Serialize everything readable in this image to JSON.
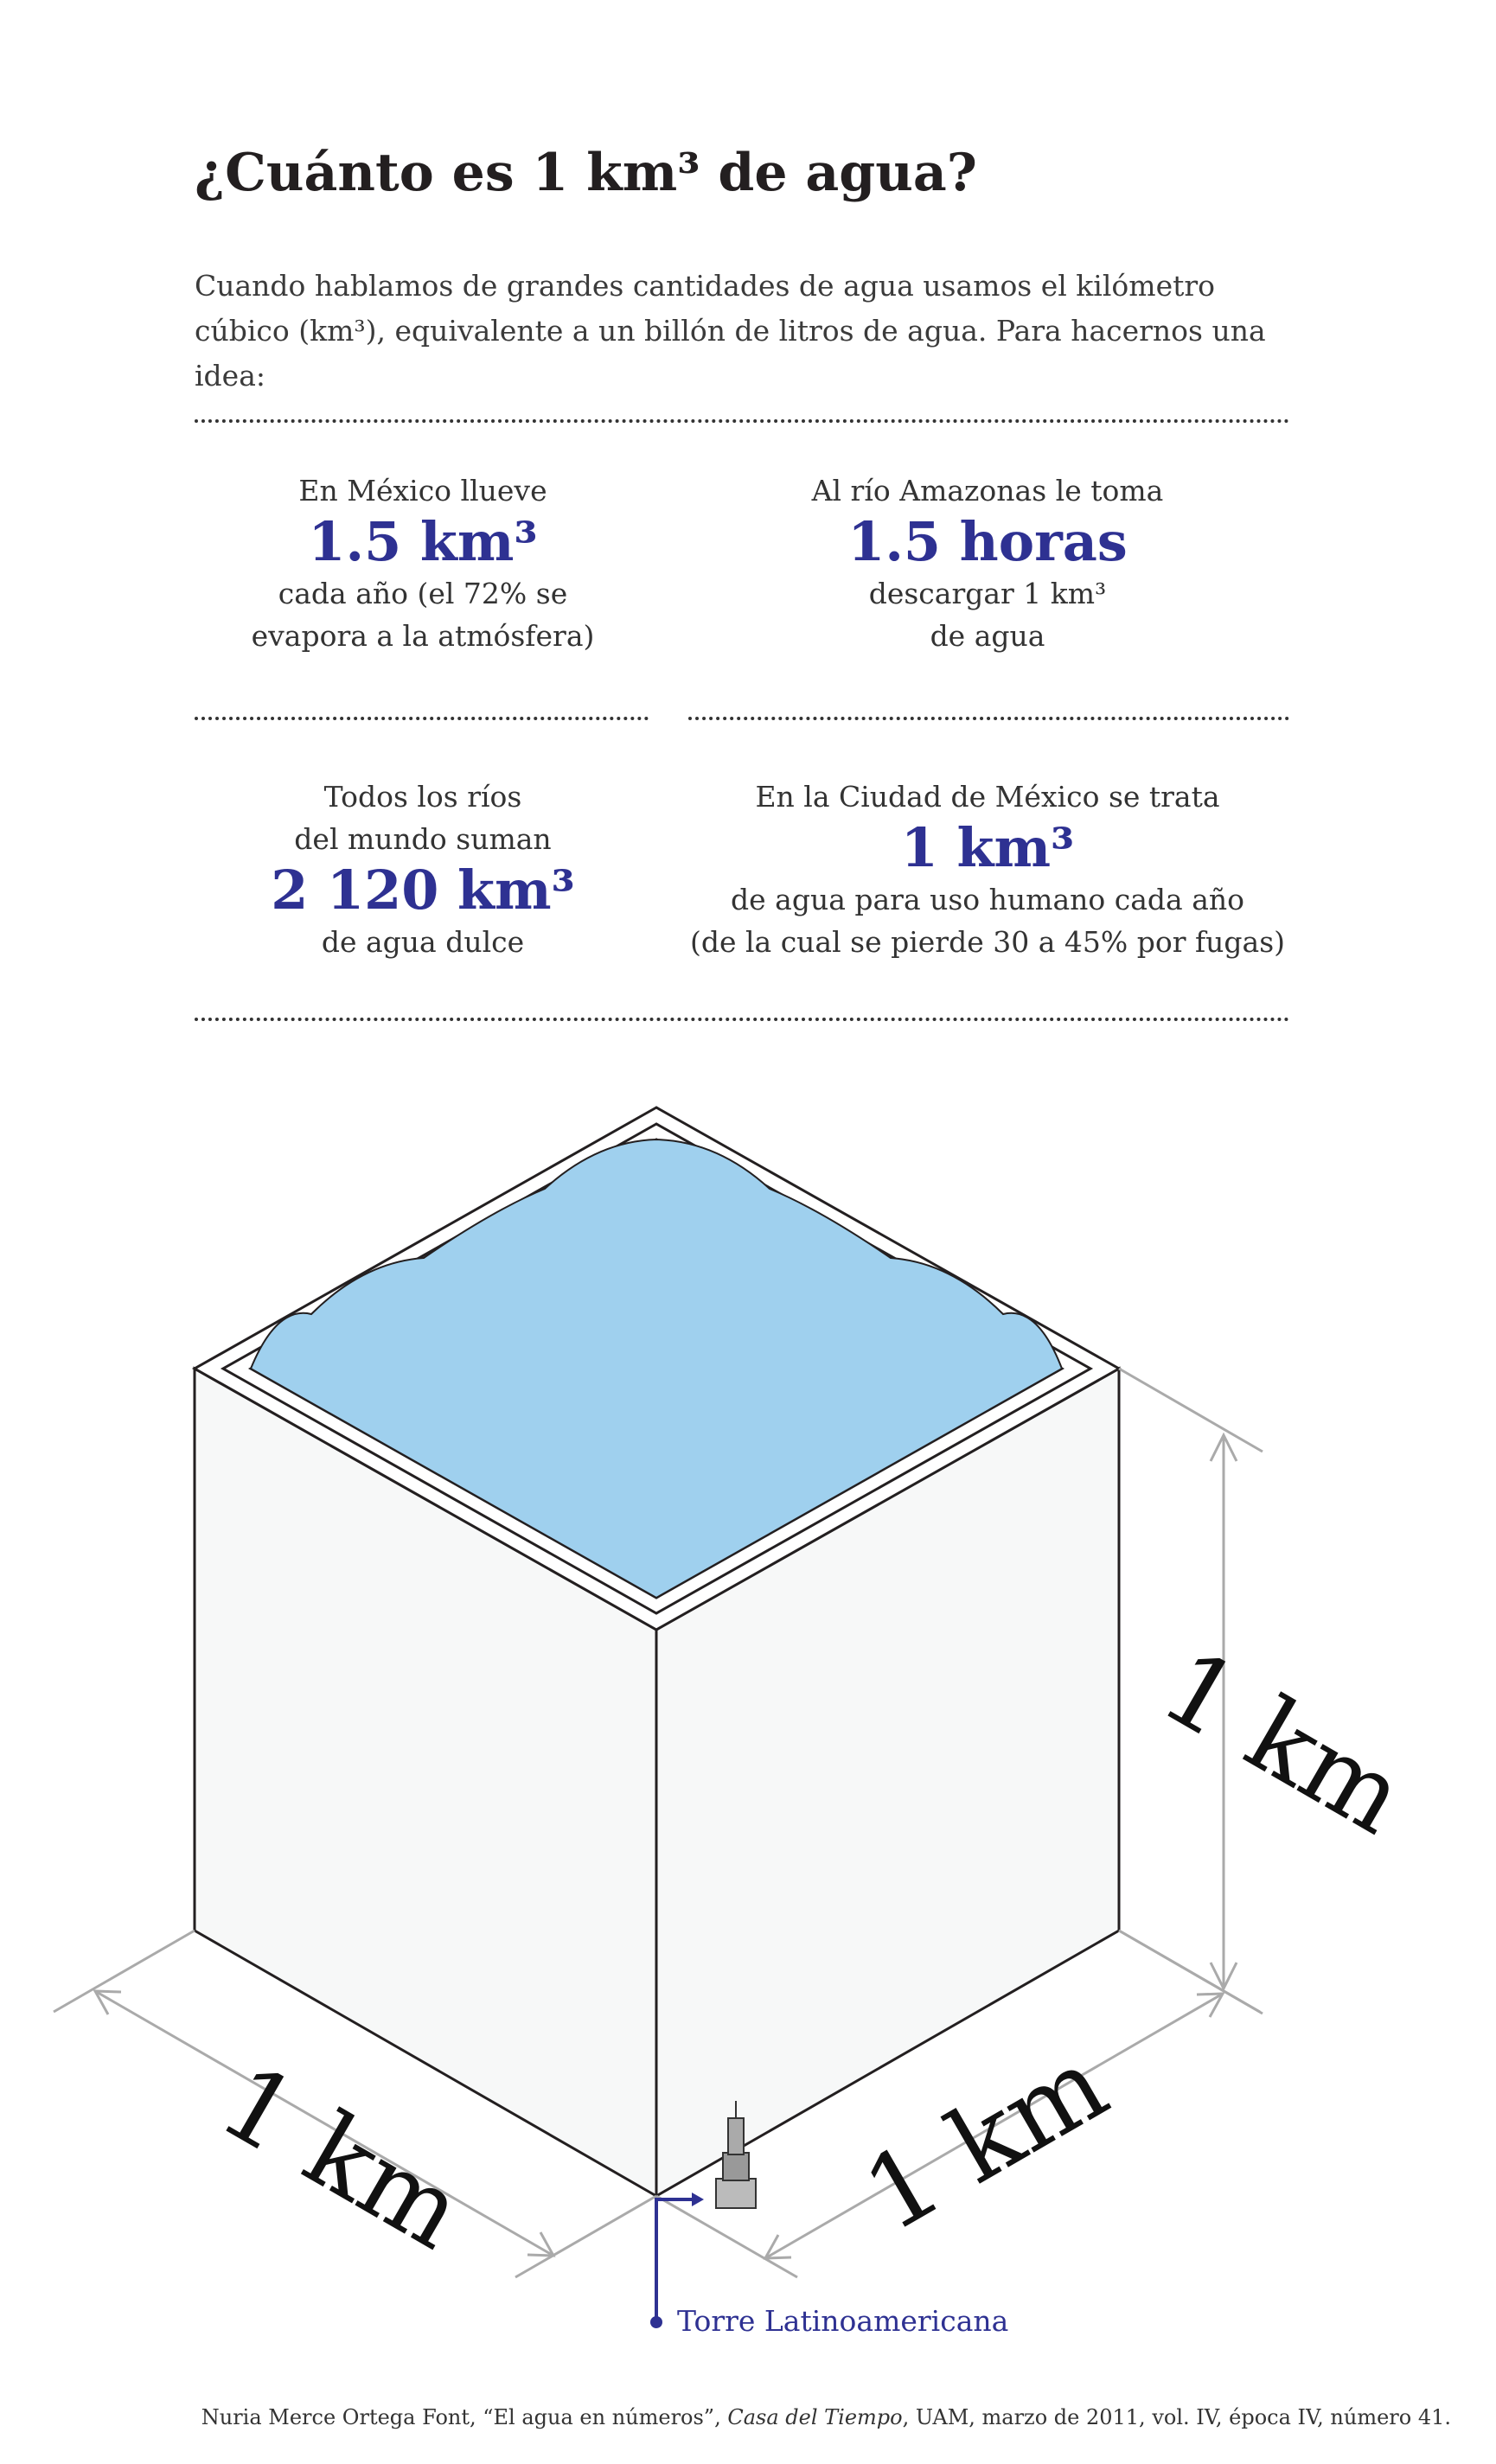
{
  "title": "¿Cuánto es 1 km³ de agua?",
  "intro": "Cuando hablamos de grandes cantidades de agua usamos el kilómetro cúbico (km³), equivalente a un billón de litros de agua. Para hacernos una idea:",
  "facts": [
    {
      "before": [
        "En México llueve"
      ],
      "value": "1.5 km³",
      "after": [
        "cada año (el 72% se",
        "evapora a la atmósfera)"
      ]
    },
    {
      "before": [
        "Al río Amazonas le toma"
      ],
      "value": "1.5 horas",
      "after": [
        "descargar 1 km³",
        "de agua"
      ]
    },
    {
      "before": [
        "Todos los ríos",
        "del mundo suman"
      ],
      "value": "2 120 km³",
      "after": [
        "de agua dulce"
      ]
    },
    {
      "before": [
        "En la Ciudad de México se trata"
      ],
      "value": "1 km³",
      "after": [
        "de agua para uso humano cada año",
        "(de la cual se pierde 30 a 45% por fugas)"
      ]
    }
  ],
  "dimensions": {
    "height": "1 km",
    "width": "1 km",
    "depth": "1 km"
  },
  "landmark": "Torre Latinoamericana",
  "source": [
    {
      "text": "Nuria Merce Ortega Font, “El agua en números”, ",
      "italic": false
    },
    {
      "text": "Casa del Tiempo",
      "italic": true
    },
    {
      "text": ", UAM, marzo de 2011, vol. IV,  época IV,  número 41.",
      "italic": false
    }
  ]
}
